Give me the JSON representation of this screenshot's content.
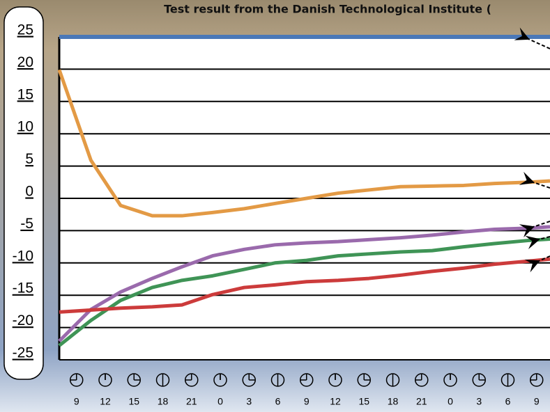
{
  "chart_data": {
    "type": "line",
    "title": "Test result from the Danish Technological Institute (",
    "x": [
      7.2,
      10.5,
      13.6,
      16.9,
      20,
      23.2,
      26.5,
      29.7,
      33,
      36.3,
      39.5,
      42.8,
      46.1,
      49.4,
      52.6,
      56.3,
      58.4
    ],
    "xlim": [
      7.2,
      58.4
    ],
    "xticks": [
      9,
      12,
      15,
      18,
      21,
      {
        "value": 24,
        "label": "0"
      },
      {
        "value": 27,
        "label": "3"
      },
      {
        "value": 30,
        "label": "6"
      },
      {
        "value": 33,
        "label": "9"
      },
      {
        "value": 36,
        "label": "12"
      },
      {
        "value": 39,
        "label": "15"
      },
      {
        "value": 42,
        "label": "18"
      },
      {
        "value": 45,
        "label": "21"
      },
      {
        "value": 48,
        "label": "0"
      },
      {
        "value": 51,
        "label": "3"
      },
      {
        "value": 54,
        "label": "6"
      },
      {
        "value": 57,
        "label": "9"
      }
    ],
    "ylim": [
      -25,
      25
    ],
    "yticks": [
      25,
      20,
      15,
      10,
      5,
      0,
      -5,
      -10,
      -15,
      -20,
      -25
    ],
    "grid": true,
    "series": [
      {
        "color": "#4a78b8",
        "values": [
          25,
          25,
          25,
          25,
          25,
          25,
          25,
          25,
          25,
          25,
          25,
          25,
          25,
          25,
          25,
          25,
          25
        ]
      },
      {
        "color": "#e39a45",
        "values": [
          19.9,
          5.9,
          -1.1,
          -2.7,
          -2.7,
          -2.2,
          -1.6,
          -0.8,
          0,
          0.8,
          1.3,
          1.8,
          1.9,
          2.0,
          2.3,
          2.5,
          2.7
        ]
      },
      {
        "color": "#9a6aac",
        "values": [
          -22.1,
          -17.2,
          -14.5,
          -12.4,
          -10.6,
          -8.9,
          -7.9,
          -7.2,
          -6.9,
          -6.7,
          -6.4,
          -6.1,
          -5.7,
          -5.2,
          -4.8,
          -4.6,
          -4.4
        ]
      },
      {
        "color": "#3f9456",
        "values": [
          -22.8,
          -18.9,
          -15.8,
          -13.8,
          -12.7,
          -12.0,
          -11.0,
          -10.0,
          -9.6,
          -8.9,
          -8.6,
          -8.3,
          -8.1,
          -7.5,
          -7.0,
          -6.5,
          -6.3
        ]
      },
      {
        "color": "#cc3b3b",
        "values": [
          -17.6,
          -17.3,
          -17.0,
          -16.8,
          -16.5,
          -14.9,
          -13.8,
          -13.4,
          -12.9,
          -12.7,
          -12.4,
          -11.9,
          -11.3,
          -10.8,
          -10.2,
          -9.7,
          -9.4
        ]
      }
    ]
  }
}
